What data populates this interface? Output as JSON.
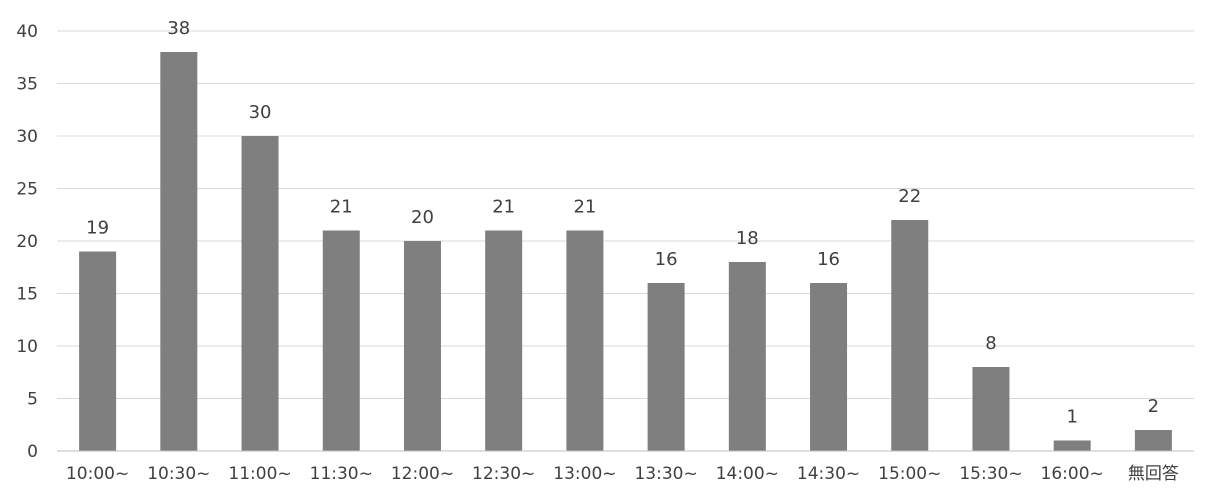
{
  "chart_data": {
    "type": "bar",
    "title": "",
    "xlabel": "",
    "ylabel": "",
    "categories": [
      "10:00~",
      "10:30~",
      "11:00~",
      "11:30~",
      "12:00~",
      "12:30~",
      "13:00~",
      "13:30~",
      "14:00~",
      "14:30~",
      "15:00~",
      "15:30~",
      "16:00~",
      "無回答"
    ],
    "values": [
      19,
      38,
      30,
      21,
      20,
      21,
      21,
      16,
      18,
      16,
      22,
      8,
      1,
      2
    ],
    "ylim": [
      0,
      40
    ],
    "yticks": [
      0,
      5,
      10,
      15,
      20,
      25,
      30,
      35,
      40
    ],
    "grid": true,
    "legend": "none",
    "data_labels": true,
    "colors": {
      "bar": "#7f7f7f",
      "grid": "#d9d9d9",
      "text": "#404040"
    }
  }
}
